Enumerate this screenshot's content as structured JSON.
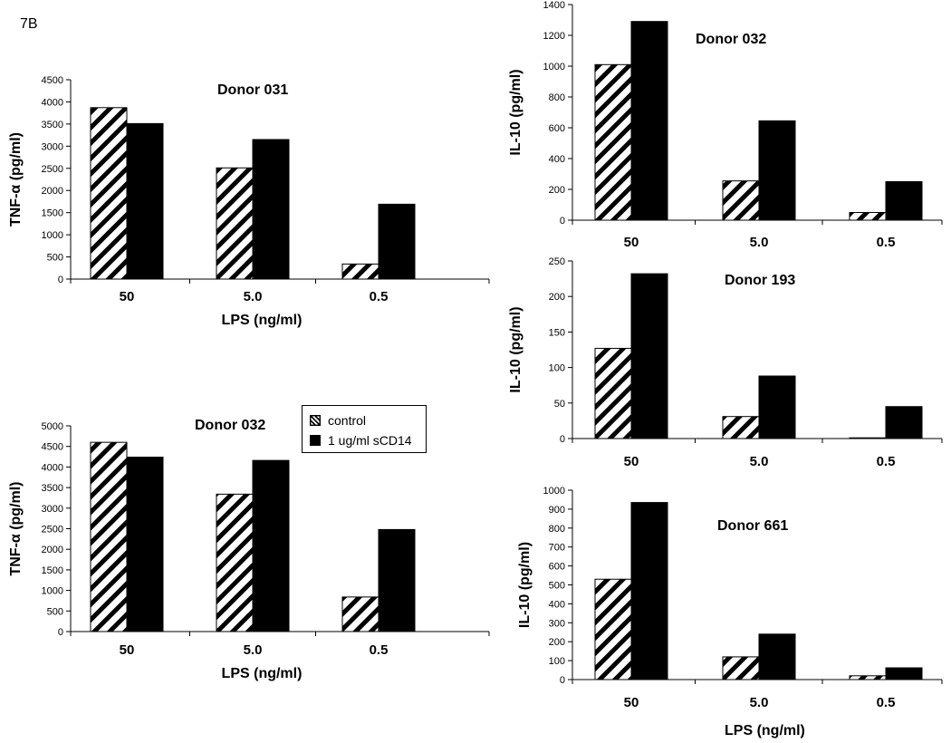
{
  "figure_label": "7B",
  "legend": {
    "control_label": "control",
    "treated_label": "1 ug/ml sCD14"
  },
  "shared_xlabel": "LPS (ng/ml)",
  "chart_data": [
    {
      "type": "bar",
      "title": "Donor 031",
      "ylabel": "TNF-α (pg/ml)",
      "xlabel": "LPS (ng/ml)",
      "categories": [
        "50",
        "5.0",
        "0.5"
      ],
      "ylim": [
        0,
        4500
      ],
      "yticks": [
        0,
        500,
        1000,
        1500,
        2000,
        2500,
        3000,
        3500,
        4000,
        4500
      ],
      "series": [
        {
          "name": "control",
          "values": [
            3870,
            2510,
            340
          ]
        },
        {
          "name": "1 ug/ml sCD14",
          "values": [
            3510,
            3150,
            1690
          ]
        }
      ]
    },
    {
      "type": "bar",
      "title": "Donor 032",
      "ylabel": "TNF-α (pg/ml)",
      "xlabel": "LPS (ng/ml)",
      "categories": [
        "50",
        "5.0",
        "0.5"
      ],
      "ylim": [
        0,
        5000
      ],
      "yticks": [
        0,
        500,
        1000,
        1500,
        2000,
        2500,
        3000,
        3500,
        4000,
        4500,
        5000
      ],
      "series": [
        {
          "name": "control",
          "values": [
            4600,
            3340,
            840
          ]
        },
        {
          "name": "1 ug/ml sCD14",
          "values": [
            4240,
            4160,
            2480
          ]
        }
      ]
    },
    {
      "type": "bar",
      "title": "Donor 032",
      "ylabel": "IL-10 (pg/ml)",
      "xlabel": "",
      "categories": [
        "50",
        "5.0",
        "0.5"
      ],
      "ylim": [
        0,
        1400
      ],
      "yticks": [
        0,
        200,
        400,
        600,
        800,
        1000,
        1200,
        1400
      ],
      "series": [
        {
          "name": "control",
          "values": [
            1010,
            255,
            50
          ]
        },
        {
          "name": "1 ug/ml sCD14",
          "values": [
            1290,
            645,
            250
          ]
        }
      ]
    },
    {
      "type": "bar",
      "title": "Donor 193",
      "ylabel": "IL-10 (pg/ml)",
      "xlabel": "",
      "categories": [
        "50",
        "5.0",
        "0.5"
      ],
      "ylim": [
        0,
        250
      ],
      "yticks": [
        0,
        50,
        100,
        150,
        200,
        250
      ],
      "series": [
        {
          "name": "control",
          "values": [
            127,
            31,
            1
          ]
        },
        {
          "name": "1 ug/ml sCD14",
          "values": [
            232,
            88,
            45
          ]
        }
      ]
    },
    {
      "type": "bar",
      "title": "Donor 661",
      "ylabel": "IL-10 (pg/ml)",
      "xlabel": "",
      "categories": [
        "50",
        "5.0",
        "0.5"
      ],
      "ylim": [
        0,
        1000
      ],
      "yticks": [
        0,
        100,
        200,
        300,
        400,
        500,
        600,
        700,
        800,
        900,
        1000
      ],
      "series": [
        {
          "name": "control",
          "values": [
            530,
            120,
            20
          ]
        },
        {
          "name": "1 ug/ml sCD14",
          "values": [
            935,
            240,
            62
          ]
        }
      ]
    }
  ]
}
